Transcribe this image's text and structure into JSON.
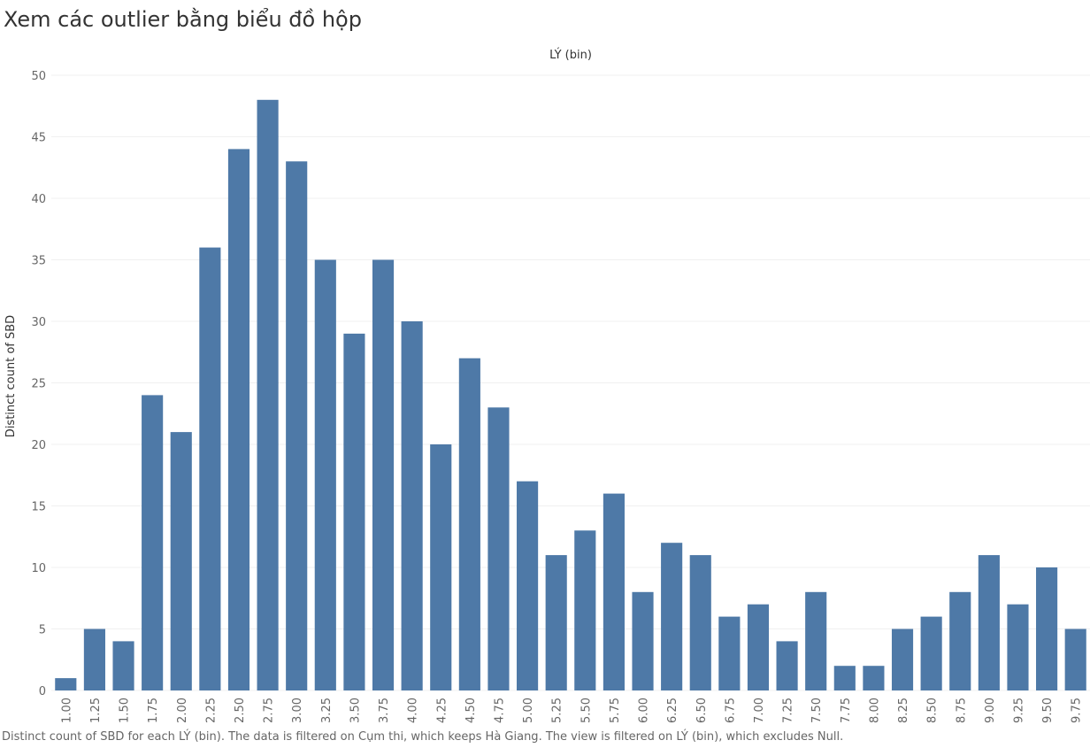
{
  "page_title": "Xem các outlier bằng biểu đồ hộp",
  "caption": "Distinct count of SBD for each LÝ (bin). The data is filtered on Cụm thi, which keeps Hà Giang. The view is filtered on LÝ (bin), which excludes Null.",
  "bar_color": "#4e79a7",
  "chart_data": {
    "type": "bar",
    "title": "LÝ (bin)",
    "xlabel": "",
    "ylabel": "Distinct count of SBD",
    "ylim": [
      0,
      50
    ],
    "yticks": [
      0,
      5,
      10,
      15,
      20,
      25,
      30,
      35,
      40,
      45,
      50
    ],
    "grid": true,
    "categories": [
      "1.00",
      "1.25",
      "1.50",
      "1.75",
      "2.00",
      "2.25",
      "2.50",
      "2.75",
      "3.00",
      "3.25",
      "3.50",
      "3.75",
      "4.00",
      "4.25",
      "4.50",
      "4.75",
      "5.00",
      "5.25",
      "5.50",
      "5.75",
      "6.00",
      "6.25",
      "6.50",
      "6.75",
      "7.00",
      "7.25",
      "7.50",
      "7.75",
      "8.00",
      "8.25",
      "8.50",
      "8.75",
      "9.00",
      "9.25",
      "9.50",
      "9.75"
    ],
    "values": [
      1,
      5,
      4,
      24,
      21,
      36,
      44,
      48,
      43,
      35,
      29,
      35,
      30,
      20,
      27,
      23,
      17,
      11,
      13,
      16,
      8,
      12,
      11,
      6,
      7,
      4,
      8,
      2,
      2,
      5,
      6,
      8,
      11,
      7,
      10,
      5
    ]
  }
}
